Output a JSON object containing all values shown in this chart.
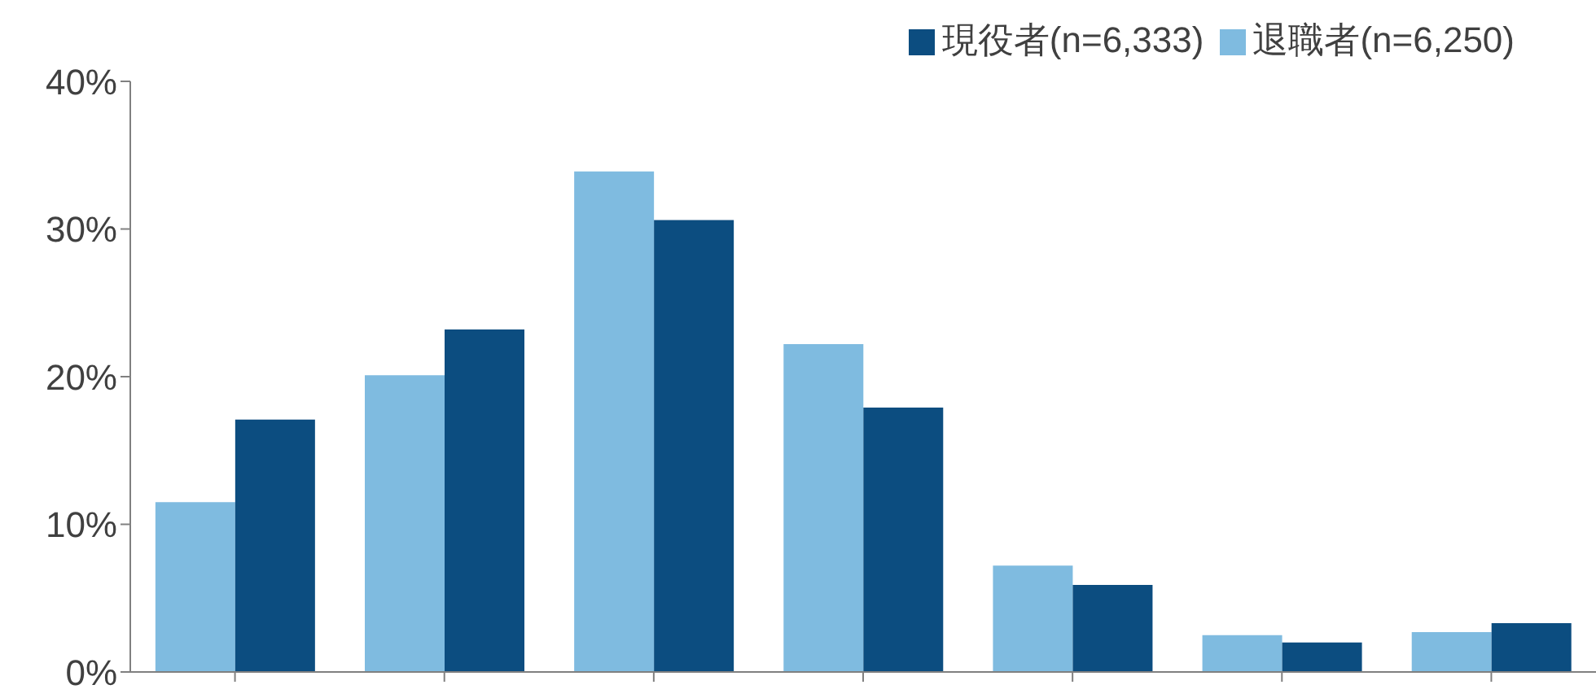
{
  "chart_data": {
    "type": "bar",
    "categories": [
      null,
      null,
      null,
      null,
      null,
      null,
      null
    ],
    "series": [
      {
        "name": "退職者(n=6,250)",
        "color": "#7fbbe0",
        "values": [
          11.5,
          20.1,
          33.9,
          22.2,
          7.2,
          2.5,
          2.7
        ]
      },
      {
        "name": "現役者(n=6,333)",
        "color": "#0c4d80",
        "values": [
          17.1,
          23.2,
          30.6,
          17.9,
          5.9,
          2.0,
          3.3
        ]
      }
    ],
    "ylim": [
      0,
      40
    ],
    "yticks": [
      {
        "value": 0,
        "label": "0%"
      },
      {
        "value": 10,
        "label": "10%"
      },
      {
        "value": 20,
        "label": "20%"
      },
      {
        "value": 30,
        "label": "30%"
      },
      {
        "value": 40,
        "label": "40%"
      }
    ],
    "tick_labels": "y",
    "grid": false,
    "legend": "top right"
  }
}
